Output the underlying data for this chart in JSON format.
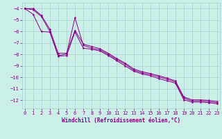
{
  "xlabel": "Windchill (Refroidissement éolien,°C)",
  "background_color": "#cceee8",
  "grid_color": "#aacccc",
  "line_color": "#880088",
  "x_ticks": [
    0,
    1,
    2,
    3,
    4,
    5,
    6,
    7,
    8,
    9,
    10,
    11,
    12,
    13,
    14,
    15,
    16,
    17,
    18,
    19,
    20,
    21,
    22,
    23
  ],
  "y_ticks": [
    -4,
    -5,
    -6,
    -7,
    -8,
    -9,
    -10,
    -11,
    -12
  ],
  "ylim": [
    -12.7,
    -3.5
  ],
  "xlim": [
    -0.3,
    23.3
  ],
  "series1": [
    [
      0,
      -4.0
    ],
    [
      1,
      -4.1
    ],
    [
      2,
      -4.7
    ],
    [
      3,
      -6.0
    ],
    [
      4,
      -8.1
    ],
    [
      5,
      -7.95
    ],
    [
      6,
      -4.8
    ],
    [
      7,
      -7.2
    ],
    [
      8,
      -7.45
    ],
    [
      9,
      -7.6
    ],
    [
      10,
      -8.0
    ],
    [
      11,
      -8.45
    ],
    [
      12,
      -8.85
    ],
    [
      13,
      -9.35
    ],
    [
      14,
      -9.6
    ],
    [
      15,
      -9.75
    ],
    [
      16,
      -9.95
    ],
    [
      17,
      -10.15
    ],
    [
      18,
      -10.4
    ],
    [
      19,
      -11.8
    ],
    [
      20,
      -12.05
    ],
    [
      21,
      -12.05
    ],
    [
      22,
      -12.1
    ],
    [
      23,
      -12.2
    ]
  ],
  "series2": [
    [
      0,
      -4.0
    ],
    [
      1,
      -4.5
    ],
    [
      2,
      -6.0
    ],
    [
      3,
      -6.05
    ],
    [
      4,
      -8.15
    ],
    [
      5,
      -8.1
    ],
    [
      6,
      -6.05
    ],
    [
      7,
      -7.45
    ],
    [
      8,
      -7.55
    ],
    [
      9,
      -7.7
    ],
    [
      10,
      -8.1
    ],
    [
      11,
      -8.55
    ],
    [
      12,
      -9.0
    ],
    [
      13,
      -9.45
    ],
    [
      14,
      -9.7
    ],
    [
      15,
      -9.85
    ],
    [
      16,
      -10.1
    ],
    [
      17,
      -10.3
    ],
    [
      18,
      -10.5
    ],
    [
      19,
      -11.95
    ],
    [
      20,
      -12.15
    ],
    [
      21,
      -12.15
    ],
    [
      22,
      -12.2
    ],
    [
      23,
      -12.3
    ]
  ],
  "series3": [
    [
      0,
      -4.0
    ],
    [
      1,
      -4.0
    ],
    [
      2,
      -4.6
    ],
    [
      3,
      -5.8
    ],
    [
      4,
      -7.9
    ],
    [
      5,
      -7.9
    ],
    [
      6,
      -5.9
    ],
    [
      7,
      -7.1
    ],
    [
      8,
      -7.3
    ],
    [
      9,
      -7.5
    ],
    [
      10,
      -7.9
    ],
    [
      11,
      -8.35
    ],
    [
      12,
      -8.75
    ],
    [
      13,
      -9.25
    ],
    [
      14,
      -9.5
    ],
    [
      15,
      -9.65
    ],
    [
      16,
      -9.85
    ],
    [
      17,
      -10.05
    ],
    [
      18,
      -10.3
    ],
    [
      19,
      -11.7
    ],
    [
      20,
      -11.95
    ],
    [
      21,
      -11.95
    ],
    [
      22,
      -12.0
    ],
    [
      23,
      -12.1
    ]
  ]
}
